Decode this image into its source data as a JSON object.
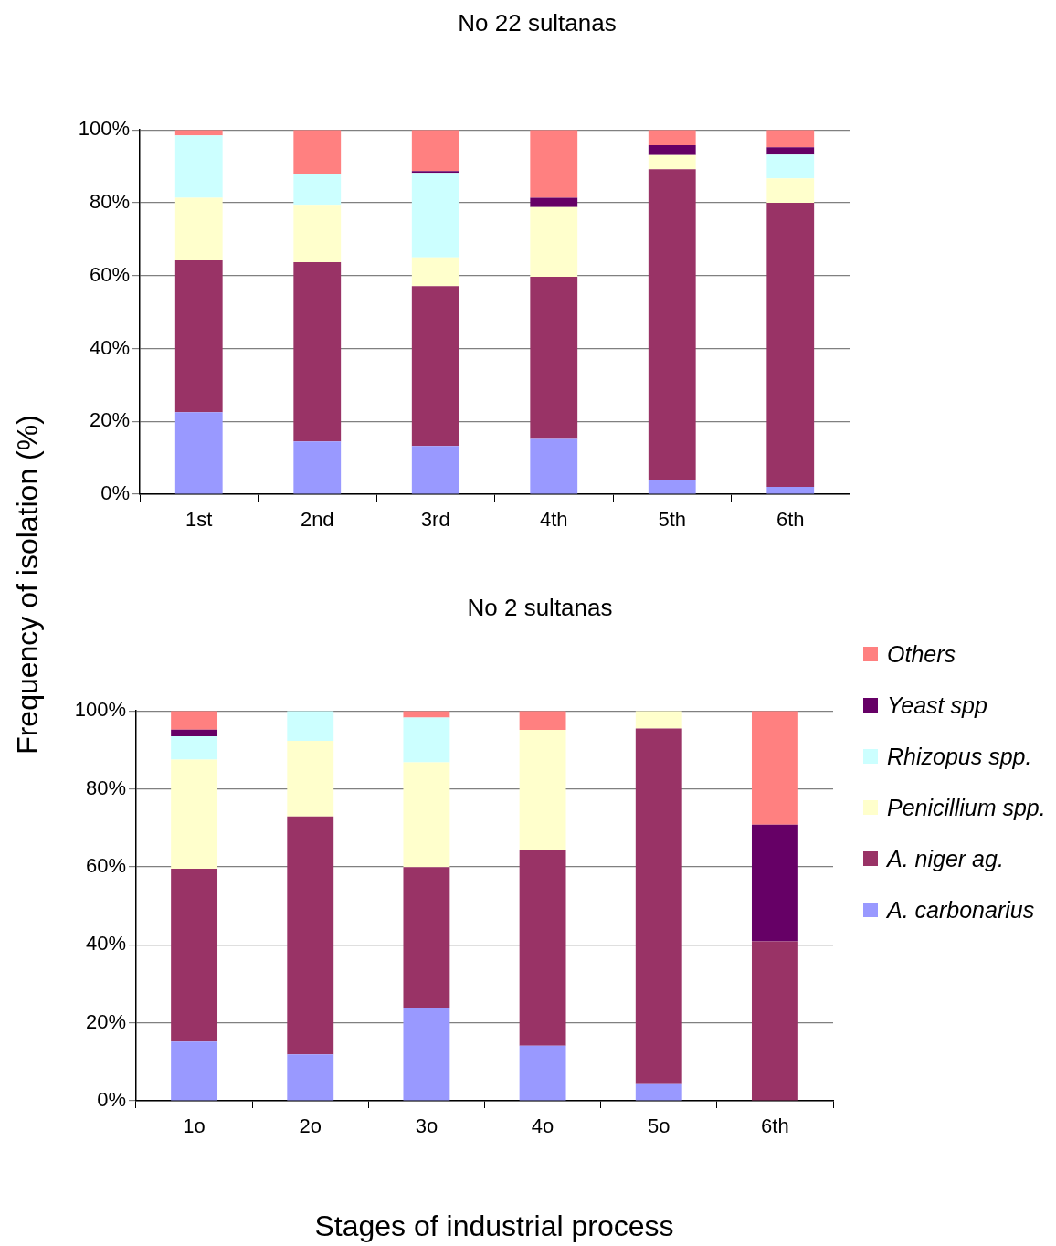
{
  "chart_data": [
    {
      "type": "bar",
      "title": "No 22 sultanas",
      "stacked": true,
      "grid": "y",
      "legend": false,
      "categories": [
        "1st",
        "2nd",
        "3rd",
        "4th",
        "5th",
        "6th"
      ],
      "ylim": [
        0,
        100
      ],
      "yticks": [
        {
          "value": 0,
          "label": "0%"
        },
        {
          "value": 20,
          "label": "20%"
        },
        {
          "value": 40,
          "label": "40%"
        },
        {
          "value": 60,
          "label": "60%"
        },
        {
          "value": 80,
          "label": "80%"
        },
        {
          "value": 100,
          "label": "100%"
        }
      ],
      "series": [
        {
          "color": "#9999ff",
          "values": [
            22.5,
            14.5,
            13.2,
            15.2,
            3.9,
            2.0
          ]
        },
        {
          "color": "#993366",
          "values": [
            41.7,
            49.2,
            43.9,
            44.5,
            85.3,
            78.0
          ]
        },
        {
          "color": "#ffffcc",
          "values": [
            17.2,
            15.7,
            7.9,
            19.1,
            3.9,
            6.7
          ]
        },
        {
          "color": "#ccffff",
          "values": [
            17.1,
            8.6,
            23.2,
            0,
            0,
            6.5
          ]
        },
        {
          "color": "#660066",
          "values": [
            0,
            0,
            0.5,
            2.6,
            2.7,
            2.0
          ]
        },
        {
          "color": "#ff8080",
          "values": [
            1.5,
            12.0,
            11.3,
            18.6,
            4.2,
            4.8
          ]
        }
      ]
    },
    {
      "type": "bar",
      "title": "No 2 sultanas",
      "xlabel": "Stages of industrial process",
      "ylabel": "Frequency of isolation (%)",
      "stacked": true,
      "grid": "y",
      "legend": "right",
      "categories": [
        "1o",
        "2o",
        "3o",
        "4o",
        "5o",
        "6th"
      ],
      "ylim": [
        0,
        100
      ],
      "yticks": [
        {
          "value": 0,
          "label": "0%"
        },
        {
          "value": 20,
          "label": "20%"
        },
        {
          "value": 40,
          "label": "40%"
        },
        {
          "value": 60,
          "label": "60%"
        },
        {
          "value": 80,
          "label": "80%"
        },
        {
          "value": 100,
          "label": "100%"
        }
      ],
      "series": [
        {
          "name": "A. carbonarius",
          "color": "#9999ff",
          "values": [
            15.2,
            11.9,
            23.8,
            14.1,
            4.3,
            0
          ]
        },
        {
          "name": "A. niger ag.",
          "color": "#993366",
          "values": [
            44.3,
            61.0,
            36.1,
            50.2,
            91.2,
            40.9
          ]
        },
        {
          "name": "Penicillium spp.",
          "color": "#ffffcc",
          "values": [
            28.0,
            19.4,
            26.9,
            30.8,
            4.5,
            0
          ]
        },
        {
          "name": "Rhizopus spp.",
          "color": "#ccffff",
          "values": [
            6.0,
            7.7,
            11.5,
            0,
            0,
            0
          ]
        },
        {
          "name": "Yeast spp",
          "color": "#660066",
          "values": [
            1.7,
            0,
            0,
            0,
            0,
            29.9
          ]
        },
        {
          "name": "Others",
          "color": "#ff8080",
          "values": [
            4.8,
            0,
            1.7,
            4.9,
            0,
            29.2
          ]
        }
      ]
    }
  ]
}
